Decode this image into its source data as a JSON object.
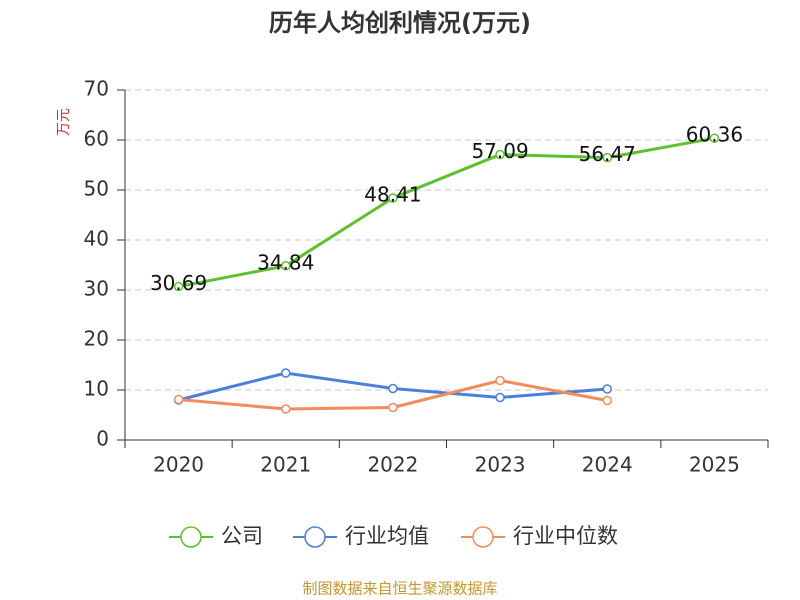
{
  "chart_data": {
    "type": "line",
    "title": "历年人均创利情况(万元)",
    "y_label": "万元",
    "categories": [
      "2020",
      "2021",
      "2022",
      "2023",
      "2024",
      "2025"
    ],
    "series": [
      {
        "name": "公司",
        "color": "#5cc12a",
        "values": [
          30.69,
          34.84,
          48.41,
          57.09,
          56.47,
          60.36
        ],
        "data_labels": true
      },
      {
        "name": "行业均值",
        "color": "#4a7fdc",
        "values": [
          8.0,
          13.4,
          10.3,
          8.5,
          10.2,
          null
        ]
      },
      {
        "name": "行业中位数",
        "color": "#f28c5c",
        "values": [
          8.1,
          6.2,
          6.5,
          11.9,
          7.9,
          null
        ]
      }
    ],
    "ylim": [
      0,
      70
    ],
    "yticks": [
      0,
      10,
      20,
      30,
      40,
      50,
      60,
      70
    ],
    "grid": true,
    "legend": "bottom",
    "source": "制图数据来自恒生聚源数据库"
  }
}
